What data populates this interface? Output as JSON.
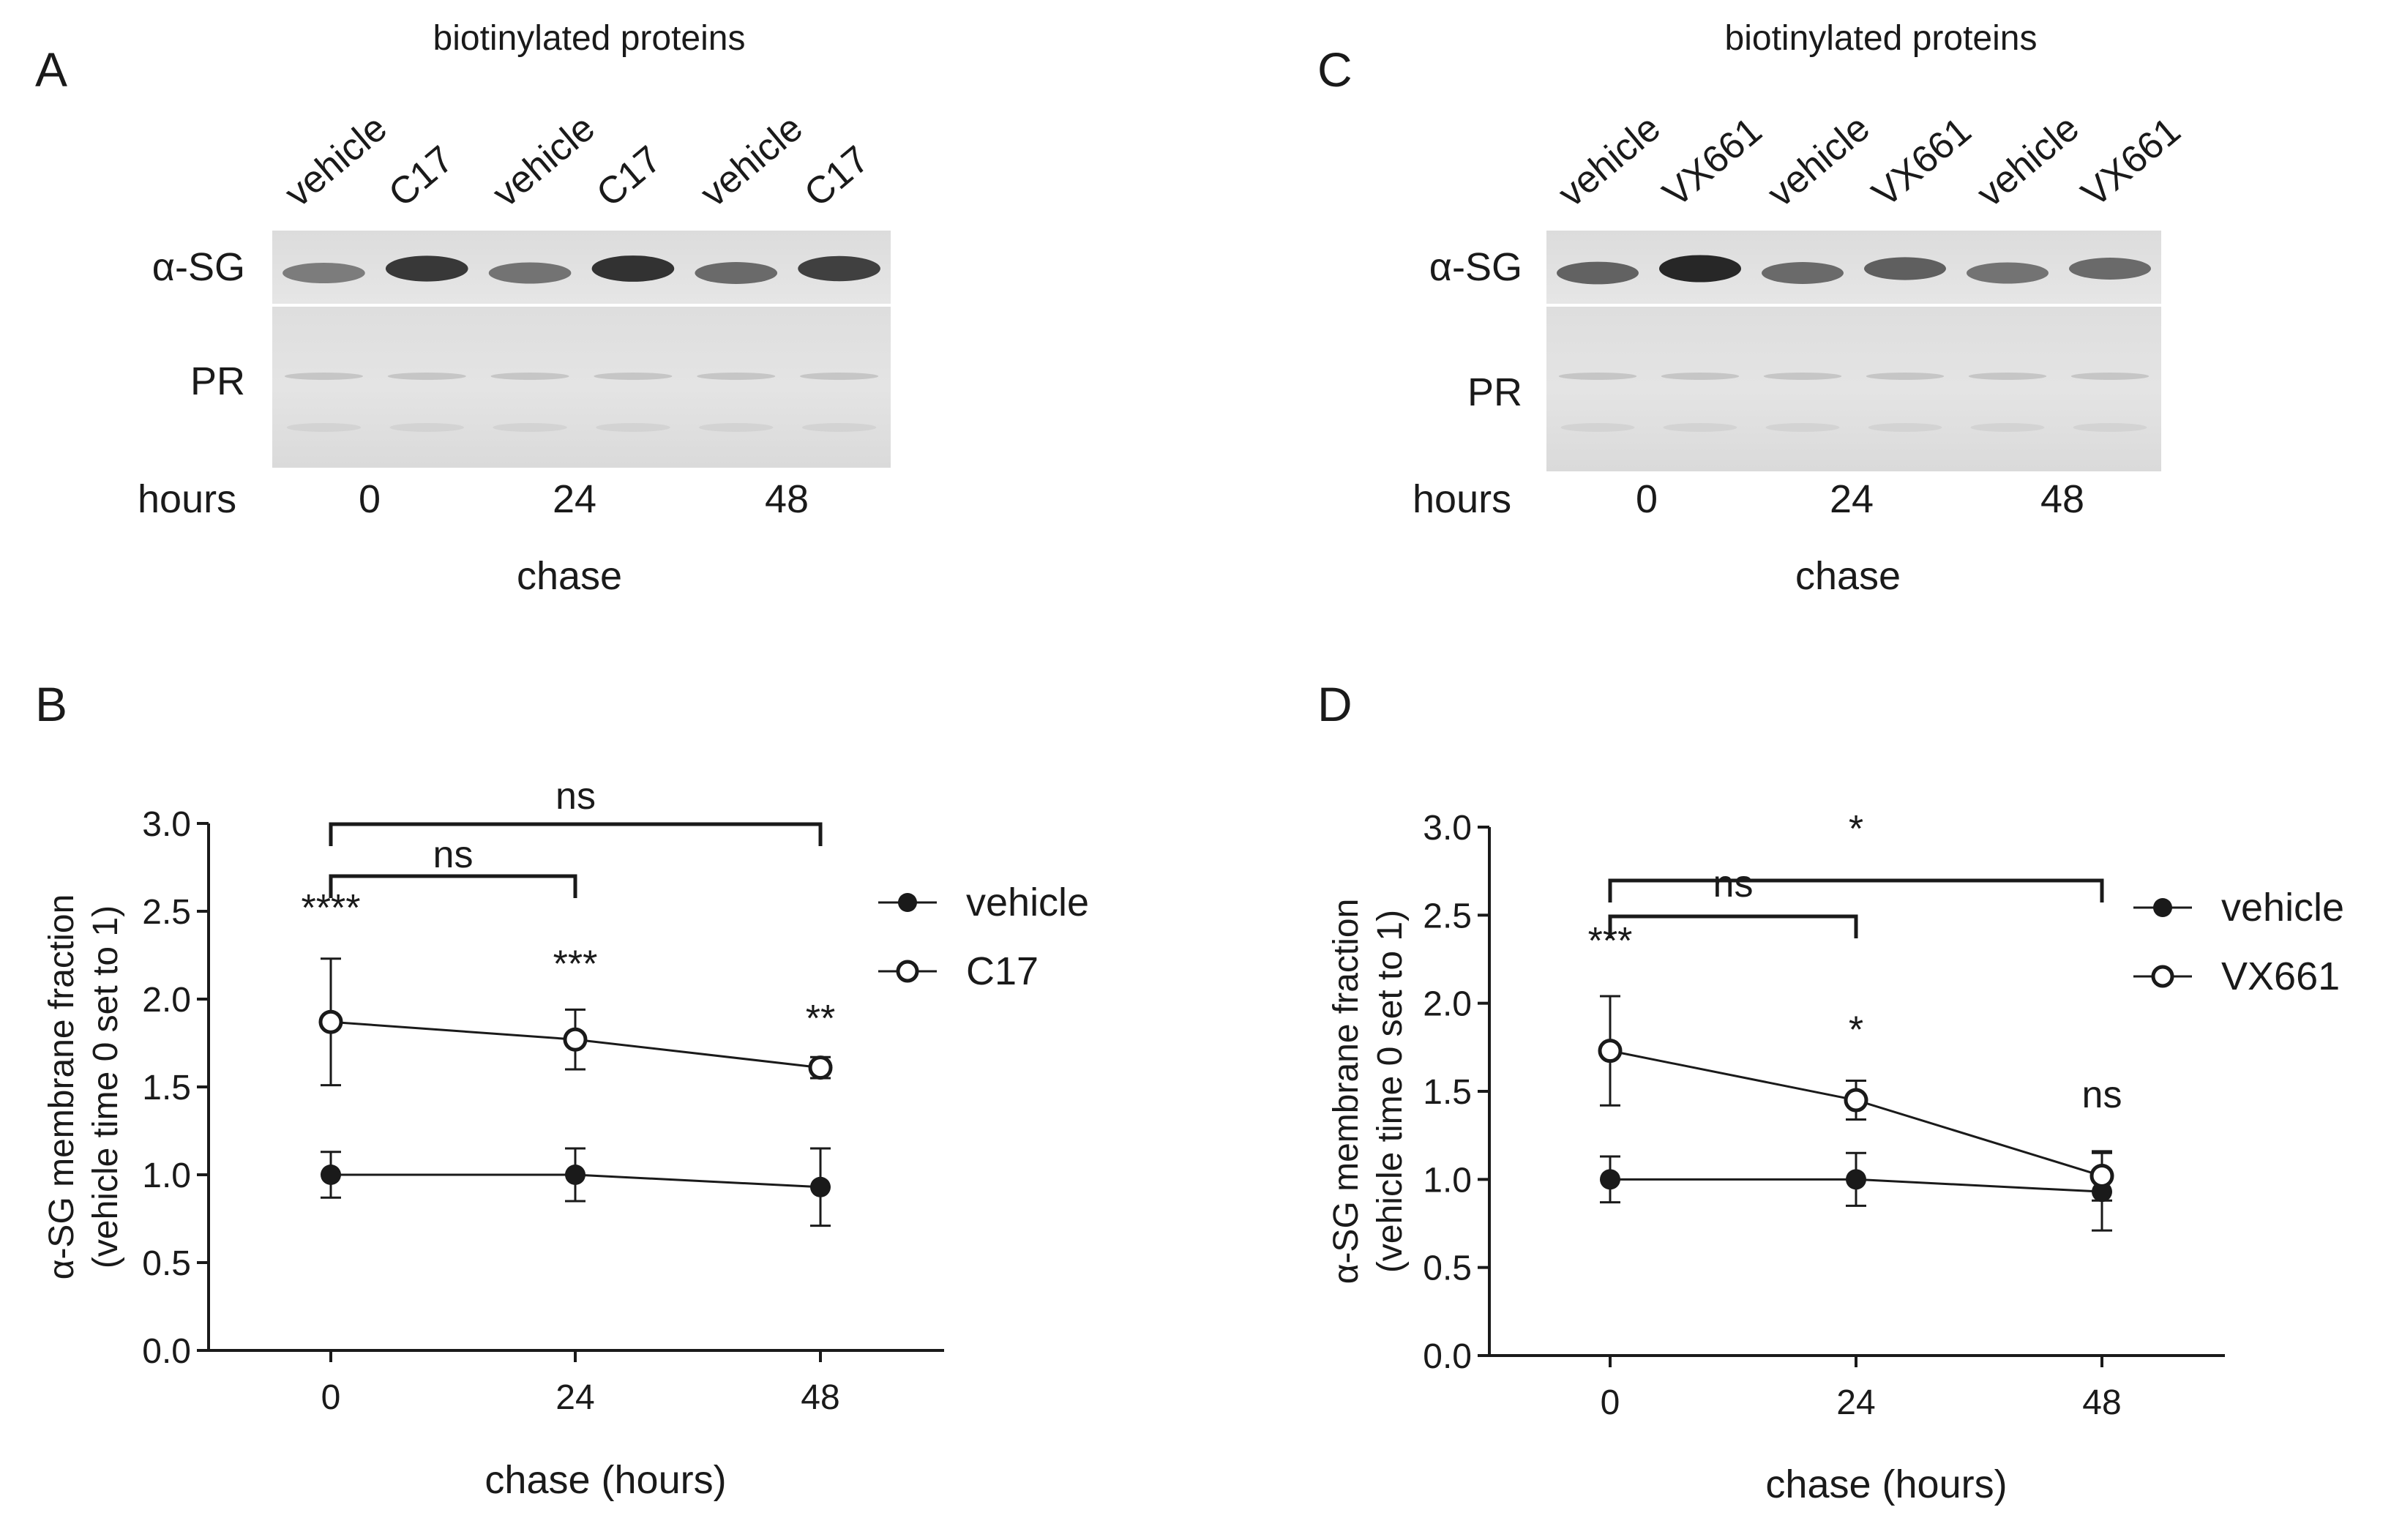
{
  "figure": {
    "blots": [
      {
        "letter": "A",
        "header": "biotinylated proteins",
        "lanes": [
          "vehicle",
          "C17",
          "vehicle",
          "C17",
          "vehicle",
          "C17"
        ],
        "rows": [
          "α-SG",
          "PR"
        ],
        "hours_label": "hours",
        "timepoints": [
          "0",
          "24",
          "48"
        ],
        "chase_label": "chase",
        "band_intensity": [
          0.45,
          0.85,
          0.5,
          0.88,
          0.55,
          0.8
        ]
      },
      {
        "letter": "C",
        "header": "biotinylated proteins",
        "lanes": [
          "vehicle",
          "VX661",
          "vehicle",
          "VX661",
          "vehicle",
          "VX661"
        ],
        "rows": [
          "α-SG",
          "PR"
        ],
        "hours_label": "hours",
        "timepoints": [
          "0",
          "24",
          "48"
        ],
        "chase_label": "chase",
        "band_intensity": [
          0.6,
          0.95,
          0.55,
          0.62,
          0.5,
          0.55
        ]
      }
    ],
    "legend_colors": {
      "line": "#1a1a1a",
      "open_fill": "#ffffff"
    }
  },
  "chart_data": [
    {
      "panel": "B",
      "type": "line",
      "x": [
        0,
        24,
        48
      ],
      "x_tick_labels": [
        "0",
        "24",
        "48"
      ],
      "xlabel": "chase (hours)",
      "ylabel": [
        "α-SG membrane fraction",
        "(vehicle time 0 set to 1)"
      ],
      "ylim": [
        0,
        3.0
      ],
      "y_ticks": [
        "0.0",
        "0.5",
        "1.0",
        "1.5",
        "2.0",
        "2.5",
        "3.0"
      ],
      "series": [
        {
          "name": "vehicle",
          "marker": "filled",
          "values": [
            1.0,
            1.0,
            0.93
          ],
          "errors": [
            0.13,
            0.15,
            0.22
          ]
        },
        {
          "name": "C17",
          "marker": "open",
          "values": [
            1.87,
            1.77,
            1.61
          ],
          "errors": [
            0.36,
            0.17,
            0.06
          ]
        }
      ],
      "point_annotations": [
        "****",
        "***",
        "**"
      ],
      "brackets": [
        {
          "from": "0",
          "to": "24",
          "label": "ns"
        },
        {
          "from": "0",
          "to": "48",
          "label": "ns"
        }
      ],
      "legend": [
        "vehicle",
        "C17"
      ],
      "legend_position": "right"
    },
    {
      "panel": "D",
      "type": "line",
      "x": [
        0,
        24,
        48
      ],
      "x_tick_labels": [
        "0",
        "24",
        "48"
      ],
      "xlabel": "chase (hours)",
      "ylabel": [
        "α-SG membrane fraction",
        "(vehicle time 0 set to 1)"
      ],
      "ylim": [
        0,
        3.0
      ],
      "y_ticks": [
        "0.0",
        "0.5",
        "1.0",
        "1.5",
        "2.0",
        "2.5",
        "3.0"
      ],
      "series": [
        {
          "name": "vehicle",
          "marker": "filled",
          "values": [
            1.0,
            1.0,
            0.93
          ],
          "errors": [
            0.13,
            0.15,
            0.22
          ]
        },
        {
          "name": "VX661",
          "marker": "open",
          "values": [
            1.73,
            1.45,
            1.02
          ],
          "errors": [
            0.31,
            0.11,
            0.14
          ]
        }
      ],
      "point_annotations": [
        "***",
        "*",
        "ns"
      ],
      "brackets": [
        {
          "from": "0",
          "to": "24",
          "label": "ns"
        },
        {
          "from": "0",
          "to": "48",
          "label": "*"
        }
      ],
      "legend": [
        "vehicle",
        "VX661"
      ],
      "legend_position": "right"
    }
  ]
}
